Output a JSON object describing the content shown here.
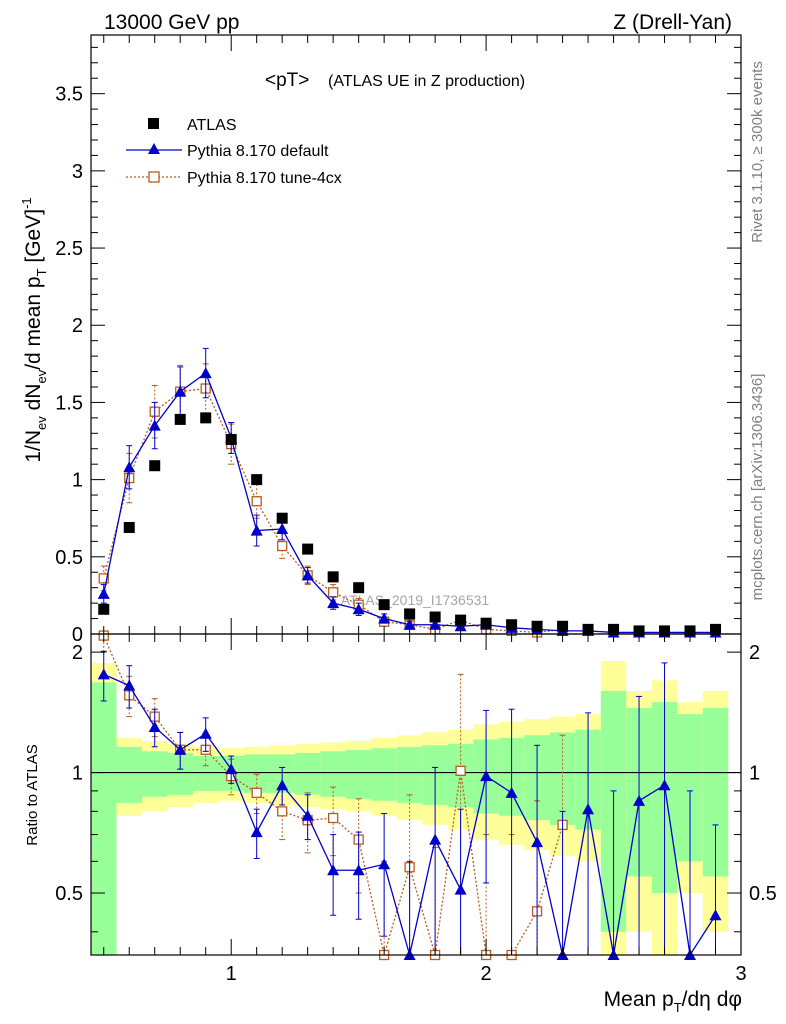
{
  "header": {
    "left": "13000 GeV pp",
    "right": "Z (Drell-Yan)"
  },
  "main_panel": {
    "title_main": "<pT>",
    "title_sub": "(ATLAS UE in Z production)",
    "ylabel": "1/N_ev dN_ev/d mean p_T [GeV]^-1",
    "watermark": "ATLAS_2019_I1736531"
  },
  "side_labels": {
    "rivet": "Rivet 3.1.10, ≥ 300k events",
    "mcplots": "mcplots.cern.ch [arXiv:1306.3436]"
  },
  "ratio_panel": {
    "ylabel": "Ratio to ATLAS"
  },
  "xlabel": "Mean p_T/dη dφ",
  "legend": [
    {
      "label": "ATLAS",
      "color": "#000000"
    },
    {
      "label": "Pythia 8.170 default",
      "color": "#0000cc"
    },
    {
      "label": "Pythia 8.170 tune-4cx",
      "color": "#b85c1e"
    }
  ],
  "chart_data": [
    {
      "type": "scatter",
      "title": "<pT> (ATLAS UE in Z production)",
      "xlabel": "Mean p_T/dη dφ",
      "ylabel": "1/N_ev dN_ev/d mean p_T [GeV]^-1",
      "xlim": [
        0.45,
        3.0
      ],
      "ylim": [
        0,
        3.88
      ],
      "x_ticks": [
        1,
        2,
        3
      ],
      "y_ticks": [
        0,
        0.5,
        1,
        1.5,
        2,
        2.5,
        3,
        3.5
      ],
      "series": [
        {
          "name": "ATLAS",
          "color": "#000000",
          "x": [
            0.5,
            0.6,
            0.7,
            0.8,
            0.9,
            1.0,
            1.1,
            1.2,
            1.3,
            1.4,
            1.5,
            1.6,
            1.7,
            1.8,
            1.9,
            2.0,
            2.1,
            2.2,
            2.3,
            2.4,
            2.5,
            2.6,
            2.7,
            2.8,
            2.9
          ],
          "y": [
            0.16,
            0.69,
            1.09,
            1.39,
            1.4,
            1.26,
            1.0,
            0.75,
            0.55,
            0.37,
            0.3,
            0.19,
            0.13,
            0.11,
            0.09,
            0.07,
            0.06,
            0.05,
            0.05,
            0.03,
            0.03,
            0.02,
            0.02,
            0.02,
            0.03
          ]
        },
        {
          "name": "Pythia 8.170 default",
          "color": "#0000cc",
          "x": [
            0.5,
            0.6,
            0.7,
            0.8,
            0.9,
            1.0,
            1.1,
            1.2,
            1.3,
            1.4,
            1.5,
            1.6,
            1.7,
            1.8,
            1.9,
            2.0,
            2.1,
            2.2,
            2.3,
            2.4,
            2.5,
            2.6,
            2.7,
            2.8,
            2.9
          ],
          "y": [
            0.26,
            1.08,
            1.35,
            1.57,
            1.69,
            1.27,
            0.67,
            0.68,
            0.38,
            0.2,
            0.16,
            0.1,
            0.06,
            0.06,
            0.05,
            0.06,
            0.04,
            0.03,
            0.02,
            0.02,
            0.01,
            0.01,
            0.01,
            0.01,
            0.01
          ],
          "yerr": [
            0.06,
            0.14,
            0.15,
            0.16,
            0.16,
            0.1,
            0.1,
            0.07,
            0.05,
            0.04,
            0.04,
            0.03,
            0.02,
            0.02,
            0.02,
            0.02,
            0.02,
            0.01,
            0.01,
            0.01,
            0.01,
            0.01,
            0.01,
            0.01,
            0.01
          ]
        },
        {
          "name": "Pythia 8.170 tune-4cx",
          "color": "#b85c1e",
          "x": [
            0.5,
            0.6,
            0.7,
            0.8,
            0.9,
            1.0,
            1.1,
            1.2,
            1.3,
            1.4,
            1.5,
            1.6,
            1.7,
            1.8,
            1.9,
            2.0,
            2.1,
            2.2,
            2.3
          ],
          "y": [
            0.36,
            1.01,
            1.44,
            1.57,
            1.59,
            1.23,
            0.86,
            0.57,
            0.38,
            0.27,
            0.19,
            0.08,
            0.06,
            0.03,
            0.09,
            0.03,
            0.02,
            0.01,
            0.03
          ],
          "yerr": [
            0.08,
            0.16,
            0.17,
            0.17,
            0.16,
            0.13,
            0.11,
            0.08,
            0.06,
            0.05,
            0.04,
            0.03,
            0.02,
            0.02,
            0.03,
            0.02,
            0.01,
            0.01,
            0.01
          ]
        }
      ]
    },
    {
      "type": "line",
      "title": "",
      "xlabel": "Mean p_T/dη dφ",
      "ylabel": "Ratio to ATLAS",
      "xlim": [
        0.45,
        3.0
      ],
      "ylim": [
        0.35,
        2.22
      ],
      "y_ticks": [
        0.5,
        1,
        2
      ],
      "reference": 1.0,
      "bands": {
        "x_edges": [
          0.45,
          0.55,
          0.65,
          0.75,
          0.85,
          0.95,
          1.05,
          1.15,
          1.25,
          1.35,
          1.45,
          1.55,
          1.65,
          1.75,
          1.85,
          1.95,
          2.05,
          2.15,
          2.25,
          2.35,
          2.45,
          2.55,
          2.65,
          2.75,
          2.85,
          2.95
        ],
        "stat_half_width": [
          0.68,
          0.16,
          0.13,
          0.12,
          0.1,
          0.1,
          0.11,
          0.11,
          0.12,
          0.13,
          0.14,
          0.15,
          0.16,
          0.17,
          0.18,
          0.21,
          0.22,
          0.24,
          0.26,
          0.28,
          0.6,
          0.45,
          0.5,
          0.4,
          0.45
        ],
        "total_half_width": [
          0.88,
          0.22,
          0.2,
          0.18,
          0.16,
          0.15,
          0.16,
          0.17,
          0.18,
          0.19,
          0.2,
          0.22,
          0.24,
          0.26,
          0.28,
          0.32,
          0.34,
          0.36,
          0.38,
          0.4,
          0.9,
          0.6,
          0.7,
          0.5,
          0.6
        ],
        "stat_color": "#99ff99",
        "total_color": "#ffff99"
      },
      "series": [
        {
          "name": "Pythia 8.170 default",
          "color": "#0000cc",
          "x": [
            0.5,
            0.6,
            0.7,
            0.8,
            0.9,
            1.0,
            1.1,
            1.2,
            1.3,
            1.4,
            1.5,
            1.6,
            1.7,
            1.8,
            1.9,
            2.0,
            2.1,
            2.2,
            2.3,
            2.4,
            2.5,
            2.6,
            2.7,
            2.8,
            2.9
          ],
          "y": [
            1.76,
            1.65,
            1.3,
            1.14,
            1.25,
            1.02,
            0.71,
            0.93,
            0.78,
            0.57,
            0.57,
            0.59,
            0.3,
            0.68,
            0.51,
            0.98,
            0.89,
            0.67,
            0.3,
            0.81,
            0.3,
            0.85,
            0.93,
            0.3,
            0.44
          ],
          "yerr": [
            0.25,
            0.2,
            0.14,
            0.12,
            0.12,
            0.08,
            0.1,
            0.1,
            0.1,
            0.13,
            0.14,
            0.2,
            0.3,
            0.35,
            0.3,
            0.45,
            0.55,
            0.5,
            0.5,
            0.6,
            0.6,
            0.7,
            0.95,
            0.6,
            0.3
          ]
        },
        {
          "name": "Pythia 8.170 tune-4cx",
          "color": "#b85c1e",
          "x": [
            0.5,
            0.6,
            0.7,
            0.8,
            0.9,
            1.0,
            1.1,
            1.2,
            1.3,
            1.4,
            1.5,
            1.6,
            1.7,
            1.8,
            1.9,
            2.0,
            2.1,
            2.2,
            2.3
          ],
          "y": [
            2.2,
            1.56,
            1.38,
            1.14,
            1.14,
            0.98,
            0.89,
            0.8,
            0.76,
            0.77,
            0.68,
            0.35,
            0.58,
            0.3,
            1.01,
            0.3,
            0.3,
            0.45,
            0.74
          ],
          "yerr": [
            0.2,
            0.18,
            0.15,
            0.12,
            0.1,
            0.1,
            0.1,
            0.12,
            0.13,
            0.15,
            0.18,
            0.25,
            0.3,
            0.35,
            0.75,
            0.4,
            0.4,
            0.4,
            0.5
          ]
        }
      ]
    }
  ]
}
